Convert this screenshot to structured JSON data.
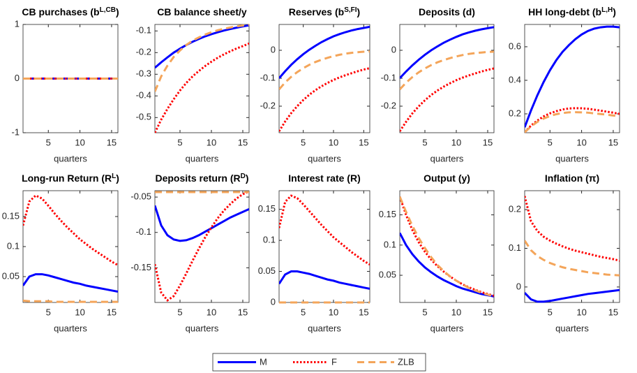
{
  "legend": {
    "entries": [
      {
        "name": "M",
        "color": "#0000ff",
        "dash": "solid"
      },
      {
        "name": "F",
        "color": "#ff0000",
        "dash": "dotted"
      },
      {
        "name": "ZLB",
        "color": "#f4a55a",
        "dash": "dashed"
      }
    ]
  },
  "chart_data": [
    {
      "type": "line",
      "title": [
        {
          "text": "CB purchases (b"
        },
        {
          "text": "L,CB",
          "sup": true
        },
        {
          "text": ")"
        }
      ],
      "xlabel": "quarters",
      "x": [
        1,
        2,
        3,
        4,
        5,
        6,
        7,
        8,
        9,
        10,
        11,
        12,
        13,
        14,
        15,
        16
      ],
      "xlim": [
        1,
        16
      ],
      "xticks": [
        5,
        10,
        15
      ],
      "ylim": [
        -1,
        1
      ],
      "yticks": [
        -1,
        0,
        1
      ],
      "series": [
        {
          "values": [
            0,
            0,
            0,
            0,
            0,
            0,
            0,
            0,
            0,
            0,
            0,
            0,
            0,
            0,
            0,
            0
          ]
        },
        {
          "values": [
            0,
            0,
            0,
            0,
            0,
            0,
            0,
            0,
            0,
            0,
            0,
            0,
            0,
            0,
            0,
            0
          ]
        },
        {
          "values": [
            0,
            0,
            0,
            0,
            0,
            0,
            0,
            0,
            0,
            0,
            0,
            0,
            0,
            0,
            0,
            0
          ]
        }
      ]
    },
    {
      "type": "line",
      "title": [
        {
          "text": "CB balance sheet/y"
        }
      ],
      "xlabel": "quarters",
      "x": [
        1,
        2,
        3,
        4,
        5,
        6,
        7,
        8,
        9,
        10,
        11,
        12,
        13,
        14,
        15,
        16
      ],
      "xlim": [
        1,
        16
      ],
      "xticks": [
        5,
        10,
        15
      ],
      "ylim": [
        -0.57,
        -0.07
      ],
      "yticks": [
        -0.5,
        -0.4,
        -0.3,
        -0.2,
        -0.1
      ],
      "series": [
        {
          "values": [
            -0.27,
            -0.245,
            -0.222,
            -0.2,
            -0.182,
            -0.165,
            -0.15,
            -0.137,
            -0.125,
            -0.115,
            -0.106,
            -0.098,
            -0.091,
            -0.085,
            -0.079,
            -0.074
          ]
        },
        {
          "values": [
            -0.57,
            -0.51,
            -0.46,
            -0.415,
            -0.375,
            -0.34,
            -0.31,
            -0.285,
            -0.262,
            -0.242,
            -0.224,
            -0.208,
            -0.194,
            -0.181,
            -0.17,
            -0.158
          ]
        },
        {
          "values": [
            -0.38,
            -0.31,
            -0.26,
            -0.22,
            -0.19,
            -0.165,
            -0.145,
            -0.13,
            -0.117,
            -0.106,
            -0.097,
            -0.09,
            -0.084,
            -0.079,
            -0.075,
            -0.072
          ]
        }
      ]
    },
    {
      "type": "line",
      "title": [
        {
          "text": "Reserves (b"
        },
        {
          "text": "S,FI",
          "sup": true
        },
        {
          "text": ")"
        }
      ],
      "xlabel": "quarters",
      "x": [
        1,
        2,
        3,
        4,
        5,
        6,
        7,
        8,
        9,
        10,
        11,
        12,
        13,
        14,
        15,
        16
      ],
      "xlim": [
        1,
        16
      ],
      "xticks": [
        5,
        10,
        15
      ],
      "ylim": [
        -0.295,
        0.0925
      ],
      "yticks": [
        -0.2,
        -0.1,
        0
      ],
      "series": [
        {
          "values": [
            -0.1,
            -0.075,
            -0.052,
            -0.032,
            -0.014,
            0.002,
            0.016,
            0.029,
            0.04,
            0.05,
            0.058,
            0.065,
            0.071,
            0.076,
            0.08,
            0.084
          ]
        },
        {
          "values": [
            -0.29,
            -0.255,
            -0.225,
            -0.2,
            -0.178,
            -0.159,
            -0.143,
            -0.129,
            -0.117,
            -0.106,
            -0.097,
            -0.089,
            -0.082,
            -0.075,
            -0.069,
            -0.064
          ]
        },
        {
          "values": [
            -0.14,
            -0.115,
            -0.095,
            -0.078,
            -0.064,
            -0.052,
            -0.042,
            -0.034,
            -0.027,
            -0.021,
            -0.016,
            -0.012,
            -0.009,
            -0.007,
            -0.005,
            -0.004
          ]
        }
      ]
    },
    {
      "type": "line",
      "title": [
        {
          "text": "Deposits (d)"
        }
      ],
      "xlabel": "quarters",
      "x": [
        1,
        2,
        3,
        4,
        5,
        6,
        7,
        8,
        9,
        10,
        11,
        12,
        13,
        14,
        15,
        16
      ],
      "xlim": [
        1,
        16
      ],
      "xticks": [
        5,
        10,
        15
      ],
      "ylim": [
        -0.295,
        0.0925
      ],
      "yticks": [
        -0.2,
        -0.1,
        0
      ],
      "series": [
        {
          "values": [
            -0.1,
            -0.076,
            -0.054,
            -0.034,
            -0.016,
            0,
            0.014,
            0.027,
            0.038,
            0.048,
            0.057,
            0.064,
            0.07,
            0.075,
            0.079,
            0.083
          ]
        },
        {
          "values": [
            -0.29,
            -0.256,
            -0.226,
            -0.201,
            -0.179,
            -0.16,
            -0.144,
            -0.13,
            -0.118,
            -0.107,
            -0.098,
            -0.09,
            -0.083,
            -0.076,
            -0.07,
            -0.065
          ]
        },
        {
          "values": [
            -0.14,
            -0.116,
            -0.096,
            -0.079,
            -0.065,
            -0.053,
            -0.043,
            -0.035,
            -0.028,
            -0.022,
            -0.017,
            -0.013,
            -0.01,
            -0.008,
            -0.006,
            -0.005
          ]
        }
      ]
    },
    {
      "type": "line",
      "title": [
        {
          "text": "HH long-debt (b"
        },
        {
          "text": "L,H",
          "sup": true
        },
        {
          "text": ")"
        }
      ],
      "xlabel": "quarters",
      "x": [
        1,
        2,
        3,
        4,
        5,
        6,
        7,
        8,
        9,
        10,
        11,
        12,
        13,
        14,
        15,
        16
      ],
      "xlim": [
        1,
        16
      ],
      "xticks": [
        5,
        10,
        15
      ],
      "ylim": [
        0.0875,
        0.733
      ],
      "yticks": [
        0.2,
        0.4,
        0.6
      ],
      "series": [
        {
          "values": [
            0.12,
            0.22,
            0.31,
            0.39,
            0.46,
            0.52,
            0.57,
            0.61,
            0.645,
            0.673,
            0.694,
            0.708,
            0.716,
            0.72,
            0.72,
            0.716
          ]
        },
        {
          "values": [
            0.09,
            0.13,
            0.16,
            0.185,
            0.203,
            0.216,
            0.226,
            0.232,
            0.234,
            0.233,
            0.23,
            0.225,
            0.219,
            0.213,
            0.207,
            0.2
          ]
        },
        {
          "values": [
            0.09,
            0.125,
            0.152,
            0.172,
            0.187,
            0.198,
            0.205,
            0.209,
            0.21,
            0.209,
            0.207,
            0.203,
            0.199,
            0.195,
            0.19,
            0.186
          ]
        }
      ]
    },
    {
      "type": "line",
      "title": [
        {
          "text": "Long-run Return (R"
        },
        {
          "text": "L",
          "sup": true
        },
        {
          "text": ")"
        }
      ],
      "xlabel": "quarters",
      "x": [
        1,
        2,
        3,
        4,
        5,
        6,
        7,
        8,
        9,
        10,
        11,
        12,
        13,
        14,
        15,
        16
      ],
      "xlim": [
        1,
        16
      ],
      "xticks": [
        5,
        10,
        15
      ],
      "ylim": [
        0.007,
        0.193
      ],
      "yticks": [
        0.05,
        0.1,
        0.15
      ],
      "series": [
        {
          "values": [
            0.035,
            0.05,
            0.054,
            0.054,
            0.052,
            0.049,
            0.046,
            0.043,
            0.04,
            0.038,
            0.035,
            0.033,
            0.031,
            0.029,
            0.027,
            0.025
          ]
        },
        {
          "values": [
            0.135,
            0.175,
            0.185,
            0.18,
            0.168,
            0.155,
            0.143,
            0.132,
            0.122,
            0.112,
            0.104,
            0.096,
            0.089,
            0.082,
            0.075,
            0.069
          ]
        },
        {
          "values": [
            0.01,
            0.009,
            0.009,
            0.009,
            0.009,
            0.008,
            0.008,
            0.008,
            0.008,
            0.008,
            0.008,
            0.008,
            0.008,
            0.008,
            0.008,
            0.008
          ]
        }
      ]
    },
    {
      "type": "line",
      "title": [
        {
          "text": "Deposits return (R"
        },
        {
          "text": "D",
          "sup": true
        },
        {
          "text": ")"
        }
      ],
      "xlabel": "quarters",
      "x": [
        1,
        2,
        3,
        4,
        5,
        6,
        7,
        8,
        9,
        10,
        11,
        12,
        13,
        14,
        15,
        16
      ],
      "xlim": [
        1,
        16
      ],
      "xticks": [
        5,
        10,
        15
      ],
      "ylim": [
        -0.199,
        -0.041
      ],
      "yticks": [
        -0.15,
        -0.1,
        -0.05
      ],
      "series": [
        {
          "values": [
            -0.062,
            -0.09,
            -0.104,
            -0.11,
            -0.112,
            -0.111,
            -0.108,
            -0.104,
            -0.099,
            -0.094,
            -0.089,
            -0.084,
            -0.079,
            -0.075,
            -0.071,
            -0.067
          ]
        },
        {
          "values": [
            -0.145,
            -0.185,
            -0.196,
            -0.19,
            -0.175,
            -0.158,
            -0.14,
            -0.123,
            -0.107,
            -0.093,
            -0.08,
            -0.069,
            -0.06,
            -0.052,
            -0.046,
            -0.042
          ]
        },
        {
          "values": [
            -0.043,
            -0.043,
            -0.043,
            -0.043,
            -0.043,
            -0.043,
            -0.043,
            -0.043,
            -0.043,
            -0.043,
            -0.043,
            -0.043,
            -0.043,
            -0.043,
            -0.043,
            -0.043
          ]
        }
      ]
    },
    {
      "type": "line",
      "title": [
        {
          "text": "Interest rate (R)"
        }
      ],
      "xlabel": "quarters",
      "x": [
        1,
        2,
        3,
        4,
        5,
        6,
        7,
        8,
        9,
        10,
        11,
        12,
        13,
        14,
        15,
        16
      ],
      "xlim": [
        1,
        16
      ],
      "xticks": [
        5,
        10,
        15
      ],
      "ylim": [
        0,
        0.18
      ],
      "yticks": [
        0,
        0.05,
        0.1,
        0.15
      ],
      "series": [
        {
          "values": [
            0.03,
            0.045,
            0.05,
            0.05,
            0.048,
            0.046,
            0.043,
            0.04,
            0.037,
            0.035,
            0.032,
            0.03,
            0.028,
            0.026,
            0.024,
            0.022
          ]
        },
        {
          "values": [
            0.12,
            0.162,
            0.172,
            0.168,
            0.158,
            0.147,
            0.136,
            0.125,
            0.115,
            0.105,
            0.097,
            0.089,
            0.081,
            0.074,
            0.067,
            0.061
          ]
        },
        {
          "values": [
            0,
            0,
            0,
            0,
            0,
            0,
            0,
            0,
            0,
            0,
            0,
            0,
            0,
            0,
            0,
            0
          ]
        }
      ]
    },
    {
      "type": "line",
      "title": [
        {
          "text": "Output (y)"
        }
      ],
      "xlabel": "quarters",
      "x": [
        1,
        2,
        3,
        4,
        5,
        6,
        7,
        8,
        9,
        10,
        11,
        12,
        13,
        14,
        15,
        16
      ],
      "xlim": [
        1,
        16
      ],
      "xticks": [
        5,
        10,
        15
      ],
      "ylim": [
        0.005,
        0.19
      ],
      "yticks": [
        0.05,
        0.1,
        0.15
      ],
      "series": [
        {
          "values": [
            0.12,
            0.1,
            0.085,
            0.073,
            0.063,
            0.055,
            0.048,
            0.042,
            0.037,
            0.032,
            0.028,
            0.025,
            0.022,
            0.019,
            0.017,
            0.015
          ]
        },
        {
          "values": [
            0.18,
            0.15,
            0.125,
            0.105,
            0.089,
            0.076,
            0.065,
            0.056,
            0.048,
            0.041,
            0.035,
            0.03,
            0.026,
            0.022,
            0.019,
            0.016
          ]
        },
        {
          "values": [
            0.18,
            0.155,
            0.132,
            0.112,
            0.095,
            0.08,
            0.067,
            0.057,
            0.048,
            0.041,
            0.035,
            0.029,
            0.025,
            0.021,
            0.018,
            0.015
          ]
        }
      ]
    },
    {
      "type": "line",
      "title": [
        {
          "text": "Inflation (π)"
        }
      ],
      "xlabel": "quarters",
      "x": [
        1,
        2,
        3,
        4,
        5,
        6,
        7,
        8,
        9,
        10,
        11,
        12,
        13,
        14,
        15,
        16
      ],
      "xlim": [
        1,
        16
      ],
      "xticks": [
        5,
        10,
        15
      ],
      "ylim": [
        -0.04,
        0.249
      ],
      "yticks": [
        0,
        0.1,
        0.2
      ],
      "series": [
        {
          "values": [
            -0.015,
            -0.032,
            -0.038,
            -0.038,
            -0.036,
            -0.033,
            -0.03,
            -0.027,
            -0.024,
            -0.021,
            -0.018,
            -0.016,
            -0.014,
            -0.012,
            -0.01,
            -0.008
          ]
        },
        {
          "values": [
            0.235,
            0.17,
            0.145,
            0.13,
            0.12,
            0.112,
            0.105,
            0.099,
            0.094,
            0.09,
            0.086,
            0.082,
            0.078,
            0.075,
            0.072,
            0.068
          ]
        },
        {
          "values": [
            0.12,
            0.095,
            0.08,
            0.07,
            0.062,
            0.056,
            0.051,
            0.047,
            0.044,
            0.041,
            0.038,
            0.036,
            0.034,
            0.032,
            0.031,
            0.03
          ]
        }
      ]
    }
  ]
}
